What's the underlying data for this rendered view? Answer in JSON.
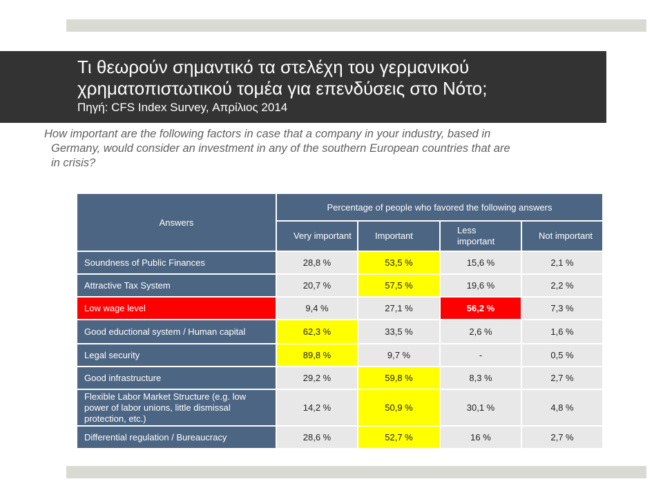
{
  "slide": {
    "title_line1": "Τι θεωρούν σημαντικό τα στελέχη του γερμανικού",
    "title_line2": "χρηματοπιστωτικού τομέα για επενδύσεις στο Νότο;",
    "source": "Πηγή: CFS Index Survey, Απρίλιος 2014",
    "question_line1": "How important are the following factors in case that a company in your industry, based in",
    "question_line2": "Germany, would consider an investment in any of the southern European countries that are",
    "question_line3": "in crisis?"
  },
  "table": {
    "answers_header": "Answers",
    "group_header": "Percentage of people who favored the following answers",
    "columns": [
      "Very important",
      "Important",
      "Less important",
      "Not important"
    ],
    "rows": [
      {
        "label": "Soundness of Public Finances",
        "values": [
          "28,8 %",
          "53,5 %",
          "15,6 %",
          "2,1 %"
        ]
      },
      {
        "label": "Attractive Tax System",
        "values": [
          "20,7 %",
          "57,5 %",
          "19,6 %",
          "2,2 %"
        ]
      },
      {
        "label": "Low wage level",
        "values": [
          "9,4 %",
          "27,1 %",
          "56,2 %",
          "7,3 %"
        ]
      },
      {
        "label": "Good eductional system / Human capital",
        "values": [
          "62,3 %",
          "33,5 %",
          "2,6 %",
          "1,6 %"
        ]
      },
      {
        "label": "Legal security",
        "values": [
          "89,8 %",
          "9,7 %",
          "-",
          "0,5 %"
        ]
      },
      {
        "label": "Good infrastructure",
        "values": [
          "29,2 %",
          "59,8 %",
          "8,3 %",
          "2,7 %"
        ]
      },
      {
        "label": "Flexible Labor Market Structure (e.g. low power of labor unions, little dismissal protection, etc.)",
        "values": [
          "14,2 %",
          "50,9 %",
          "30,1 %",
          "4,8 %"
        ]
      },
      {
        "label": "Differential regulation / Bureaucracy",
        "values": [
          "28,6 %",
          "52,7 %",
          "16 %",
          "2,7 %"
        ]
      }
    ],
    "colors": {
      "header": "#4c6583",
      "cell": "#e8e8e8",
      "highlight": "#ffff00",
      "alert": "#ff0000"
    }
  }
}
